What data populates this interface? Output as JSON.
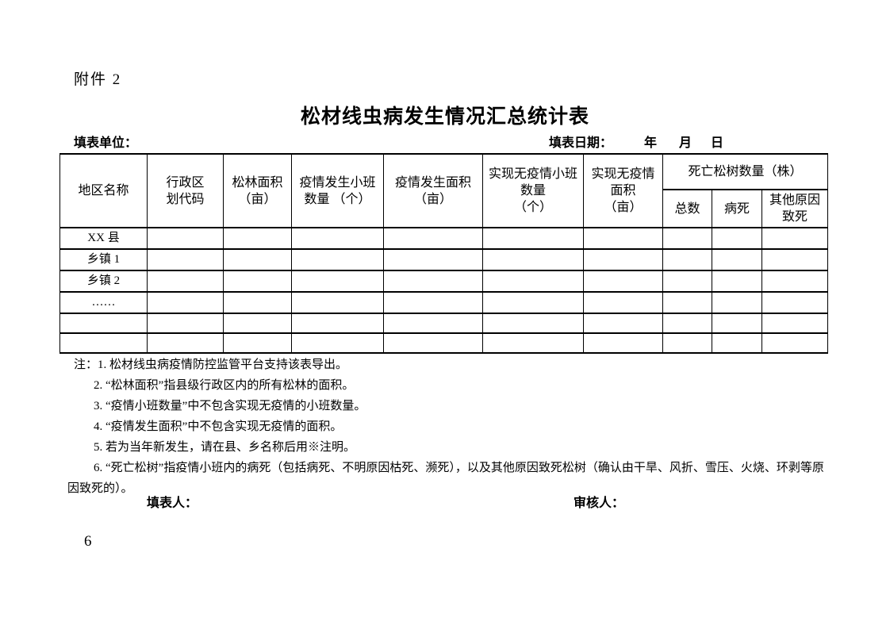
{
  "page": {
    "attachment_label": "附件 2",
    "title": "松材线虫病发生情况汇总统计表",
    "form_unit_label": "填表单位：",
    "form_date_label": "填表日期：",
    "date_year": "年",
    "date_month": "月",
    "date_day": "日",
    "page_number": "6"
  },
  "table": {
    "header": {
      "region": "地区名称",
      "admin_code": "行政区\n划代码",
      "forest_area": "松林面积\n（亩）",
      "outbreak_plots": "疫情发生小班\n数量 （个）",
      "outbreak_area": "疫情发生面积\n（亩）",
      "epidemic_free_plots": "实现无疫情小班\n数量\n（个）",
      "epidemic_free_area": "实现无疫情\n面积\n（亩）",
      "dead_trees_group": "死亡松树数量（株）",
      "dead_total": "总数",
      "dead_disease": "病死",
      "dead_other": "其他原因\n致死"
    },
    "rows": [
      [
        "XX 县",
        "",
        "",
        "",
        "",
        "",
        "",
        "",
        "",
        ""
      ],
      [
        "乡镇 1",
        "",
        "",
        "",
        "",
        "",
        "",
        "",
        "",
        ""
      ],
      [
        "乡镇 2",
        "",
        "",
        "",
        "",
        "",
        "",
        "",
        "",
        ""
      ],
      [
        "……",
        "",
        "",
        "",
        "",
        "",
        "",
        "",
        "",
        ""
      ],
      [
        "",
        "",
        "",
        "",
        "",
        "",
        "",
        "",
        "",
        ""
      ],
      [
        "",
        "",
        "",
        "",
        "",
        "",
        "",
        "",
        "",
        ""
      ]
    ]
  },
  "notes": [
    "注：1. 松材线虫病疫情防控监管平台支持该表导出。",
    "2. “松林面积”指县级行政区内的所有松林的面积。",
    "3. “疫情小班数量”中不包含实现无疫情的小班数量。",
    "4. “疫情发生面积”中不包含实现无疫情的面积。",
    "5. 若为当年新发生，请在县、乡名称后用※注明。",
    "6. “死亡松树”指疫情小班内的病死（包括病死、不明原因枯死、濒死），以及其他原因致死松树（确认由干旱、风折、雪压、火烧、环剥等原因致死的）。"
  ],
  "signatures": {
    "filler_label": "填表人：",
    "reviewer_label": "审核人："
  },
  "colors": {
    "ink": "#000000",
    "paper": "#ffffff"
  }
}
